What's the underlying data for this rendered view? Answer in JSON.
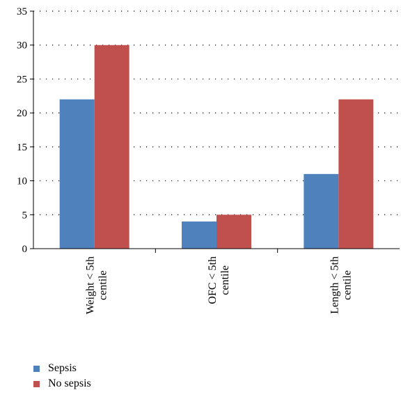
{
  "chart_data": {
    "type": "bar",
    "categories": [
      [
        "Weight < 5th",
        "centile"
      ],
      [
        "OFC < 5th",
        "centile"
      ],
      [
        "Length < 5th",
        "centile"
      ]
    ],
    "series": [
      {
        "name": "Sepsis",
        "values": [
          22,
          4,
          11
        ],
        "color": "#4F81BD"
      },
      {
        "name": "No sepsis",
        "values": [
          30,
          5,
          22
        ],
        "color": "#C0504D"
      }
    ],
    "yticks": [
      "0",
      "5",
      "10",
      "15",
      "20",
      "25",
      "30",
      "35"
    ],
    "ylim": [
      0,
      35
    ],
    "grid": "horizontal-dotted",
    "legend_position": "bottom-left"
  }
}
